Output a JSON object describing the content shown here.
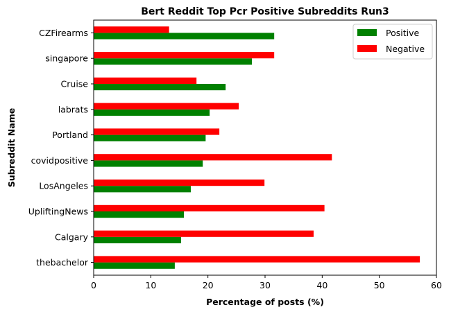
{
  "chart_data": {
    "type": "bar",
    "orientation": "horizontal",
    "title": "Bert Reddit Top Pcr Positive Subreddits Run3",
    "xlabel": "Percentage of posts (%)",
    "ylabel": "Subreddit Name",
    "xlim": [
      0,
      60
    ],
    "xticks": [
      0,
      10,
      20,
      30,
      40,
      50,
      60
    ],
    "categories": [
      "CZFirearms",
      "singapore",
      "Cruise",
      "labrats",
      "Portland",
      "covidpositive",
      "LosAngeles",
      "UpliftingNews",
      "Calgary",
      "thebachelor"
    ],
    "series": [
      {
        "name": "Positive",
        "color": "#008000",
        "values": [
          31.6,
          27.7,
          23.1,
          20.3,
          19.6,
          19.1,
          17.0,
          15.8,
          15.3,
          14.2
        ]
      },
      {
        "name": "Negative",
        "color": "#ff0000",
        "values": [
          13.2,
          31.6,
          18.0,
          25.4,
          22.0,
          41.7,
          29.9,
          40.4,
          38.5,
          57.1
        ]
      }
    ],
    "legend_position": "top-right",
    "grid": false
  }
}
